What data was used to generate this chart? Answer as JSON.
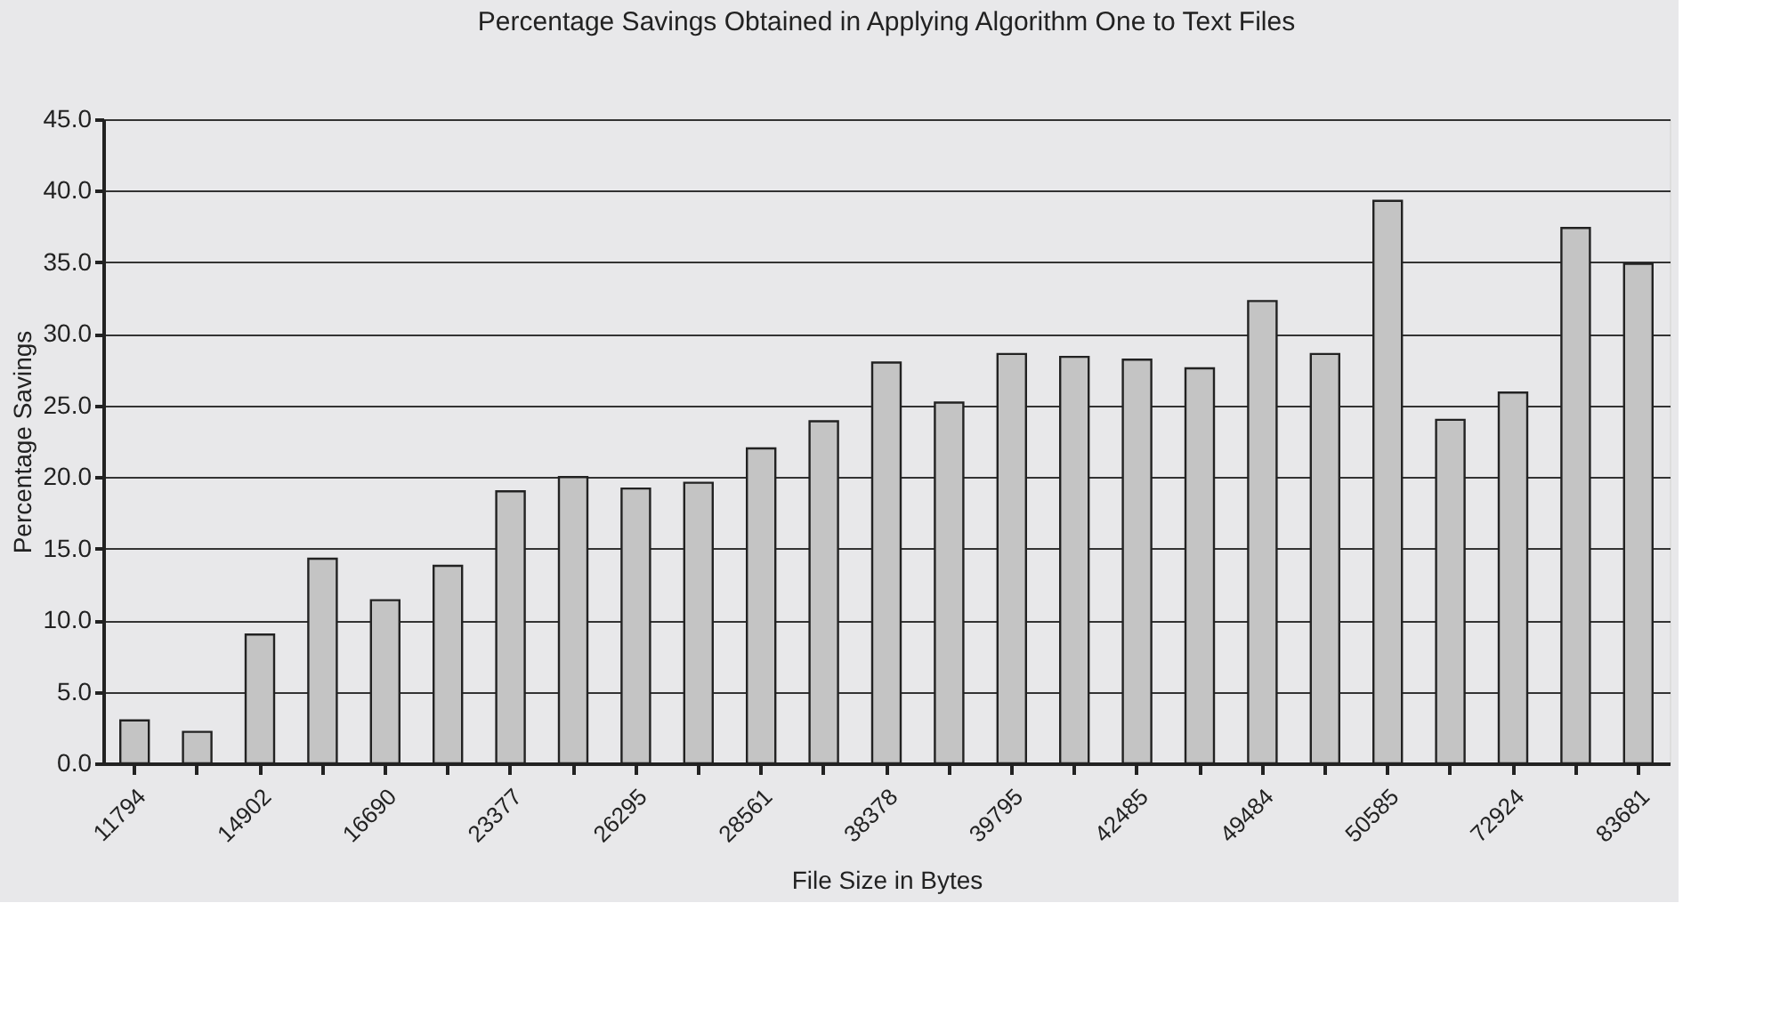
{
  "chart_data": {
    "type": "bar",
    "title": "Percentage Savings Obtained in Applying Algorithm One to Text Files",
    "xlabel": "File Size in Bytes",
    "ylabel": "Percentage Savings",
    "categories": [
      "11794",
      null,
      "14902",
      null,
      "16690",
      null,
      "23377",
      null,
      "26295",
      null,
      "28561",
      null,
      "38378",
      null,
      "39795",
      null,
      "42485",
      null,
      "49484",
      null,
      "50585",
      null,
      "72924",
      null,
      "83681"
    ],
    "values": [
      3.0,
      2.2,
      9.0,
      14.3,
      11.4,
      13.8,
      19.0,
      20.0,
      19.2,
      19.6,
      22.0,
      23.9,
      28.0,
      25.2,
      28.6,
      28.4,
      28.2,
      27.6,
      32.3,
      28.6,
      39.3,
      24.0,
      25.9,
      37.4,
      34.9
    ],
    "color": "#c4c4c4",
    "ylim": [
      0,
      45
    ],
    "yticks": [
      {
        "value": 0,
        "label": "0.0"
      },
      {
        "value": 5,
        "label": "5.0"
      },
      {
        "value": 10,
        "label": "10.0"
      },
      {
        "value": 15,
        "label": "15.0"
      },
      {
        "value": 20,
        "label": "20.0"
      },
      {
        "value": 25,
        "label": "25.0"
      },
      {
        "value": 30,
        "label": "30.0"
      },
      {
        "value": 35,
        "label": "35.0"
      },
      {
        "value": 40,
        "label": "40.0"
      },
      {
        "value": 45,
        "label": "45.0"
      }
    ],
    "grid": "y"
  }
}
